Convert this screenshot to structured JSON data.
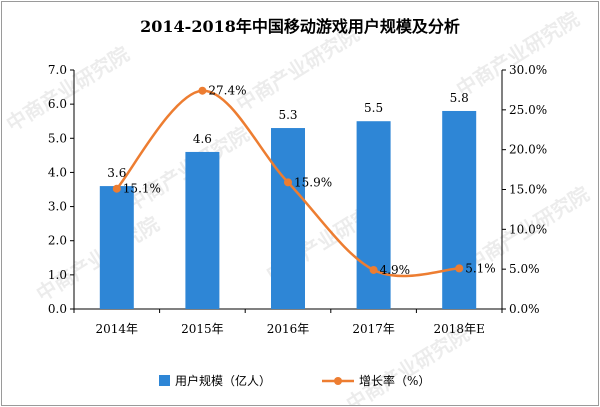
{
  "chart_data": {
    "type": "bar",
    "title": "2014-2018年中国移动游戏用户规模及分析",
    "categories": [
      "2014年",
      "2015年",
      "2016年",
      "2017年",
      "2018年E"
    ],
    "series": [
      {
        "name": "用户规模（亿人）",
        "type": "bar",
        "axis": "left",
        "values": [
          3.6,
          4.6,
          5.3,
          5.5,
          5.8
        ],
        "labels": [
          "3.6",
          "4.6",
          "5.3",
          "5.5",
          "5.8"
        ],
        "color": "#2e86d6"
      },
      {
        "name": "增长率（%）",
        "type": "line",
        "axis": "right",
        "values": [
          15.1,
          27.4,
          15.9,
          4.9,
          5.1
        ],
        "labels": [
          "15.1%",
          "27.4%",
          "15.9%",
          "4.9%",
          "5.1%"
        ],
        "color": "#ed7d31"
      }
    ],
    "y_left": {
      "min": 0,
      "max": 7,
      "step": 1,
      "tick_labels": [
        "0.0",
        "1.0",
        "2.0",
        "3.0",
        "4.0",
        "5.0",
        "6.0",
        "7.0"
      ]
    },
    "y_right": {
      "min": 0,
      "max": 30,
      "step": 5,
      "tick_labels": [
        "0.0%",
        "5.0%",
        "10.0%",
        "15.0%",
        "20.0%",
        "25.0%",
        "30.0%"
      ]
    },
    "grid": false,
    "legend_position": "bottom"
  },
  "watermark": "中商产业研究院"
}
